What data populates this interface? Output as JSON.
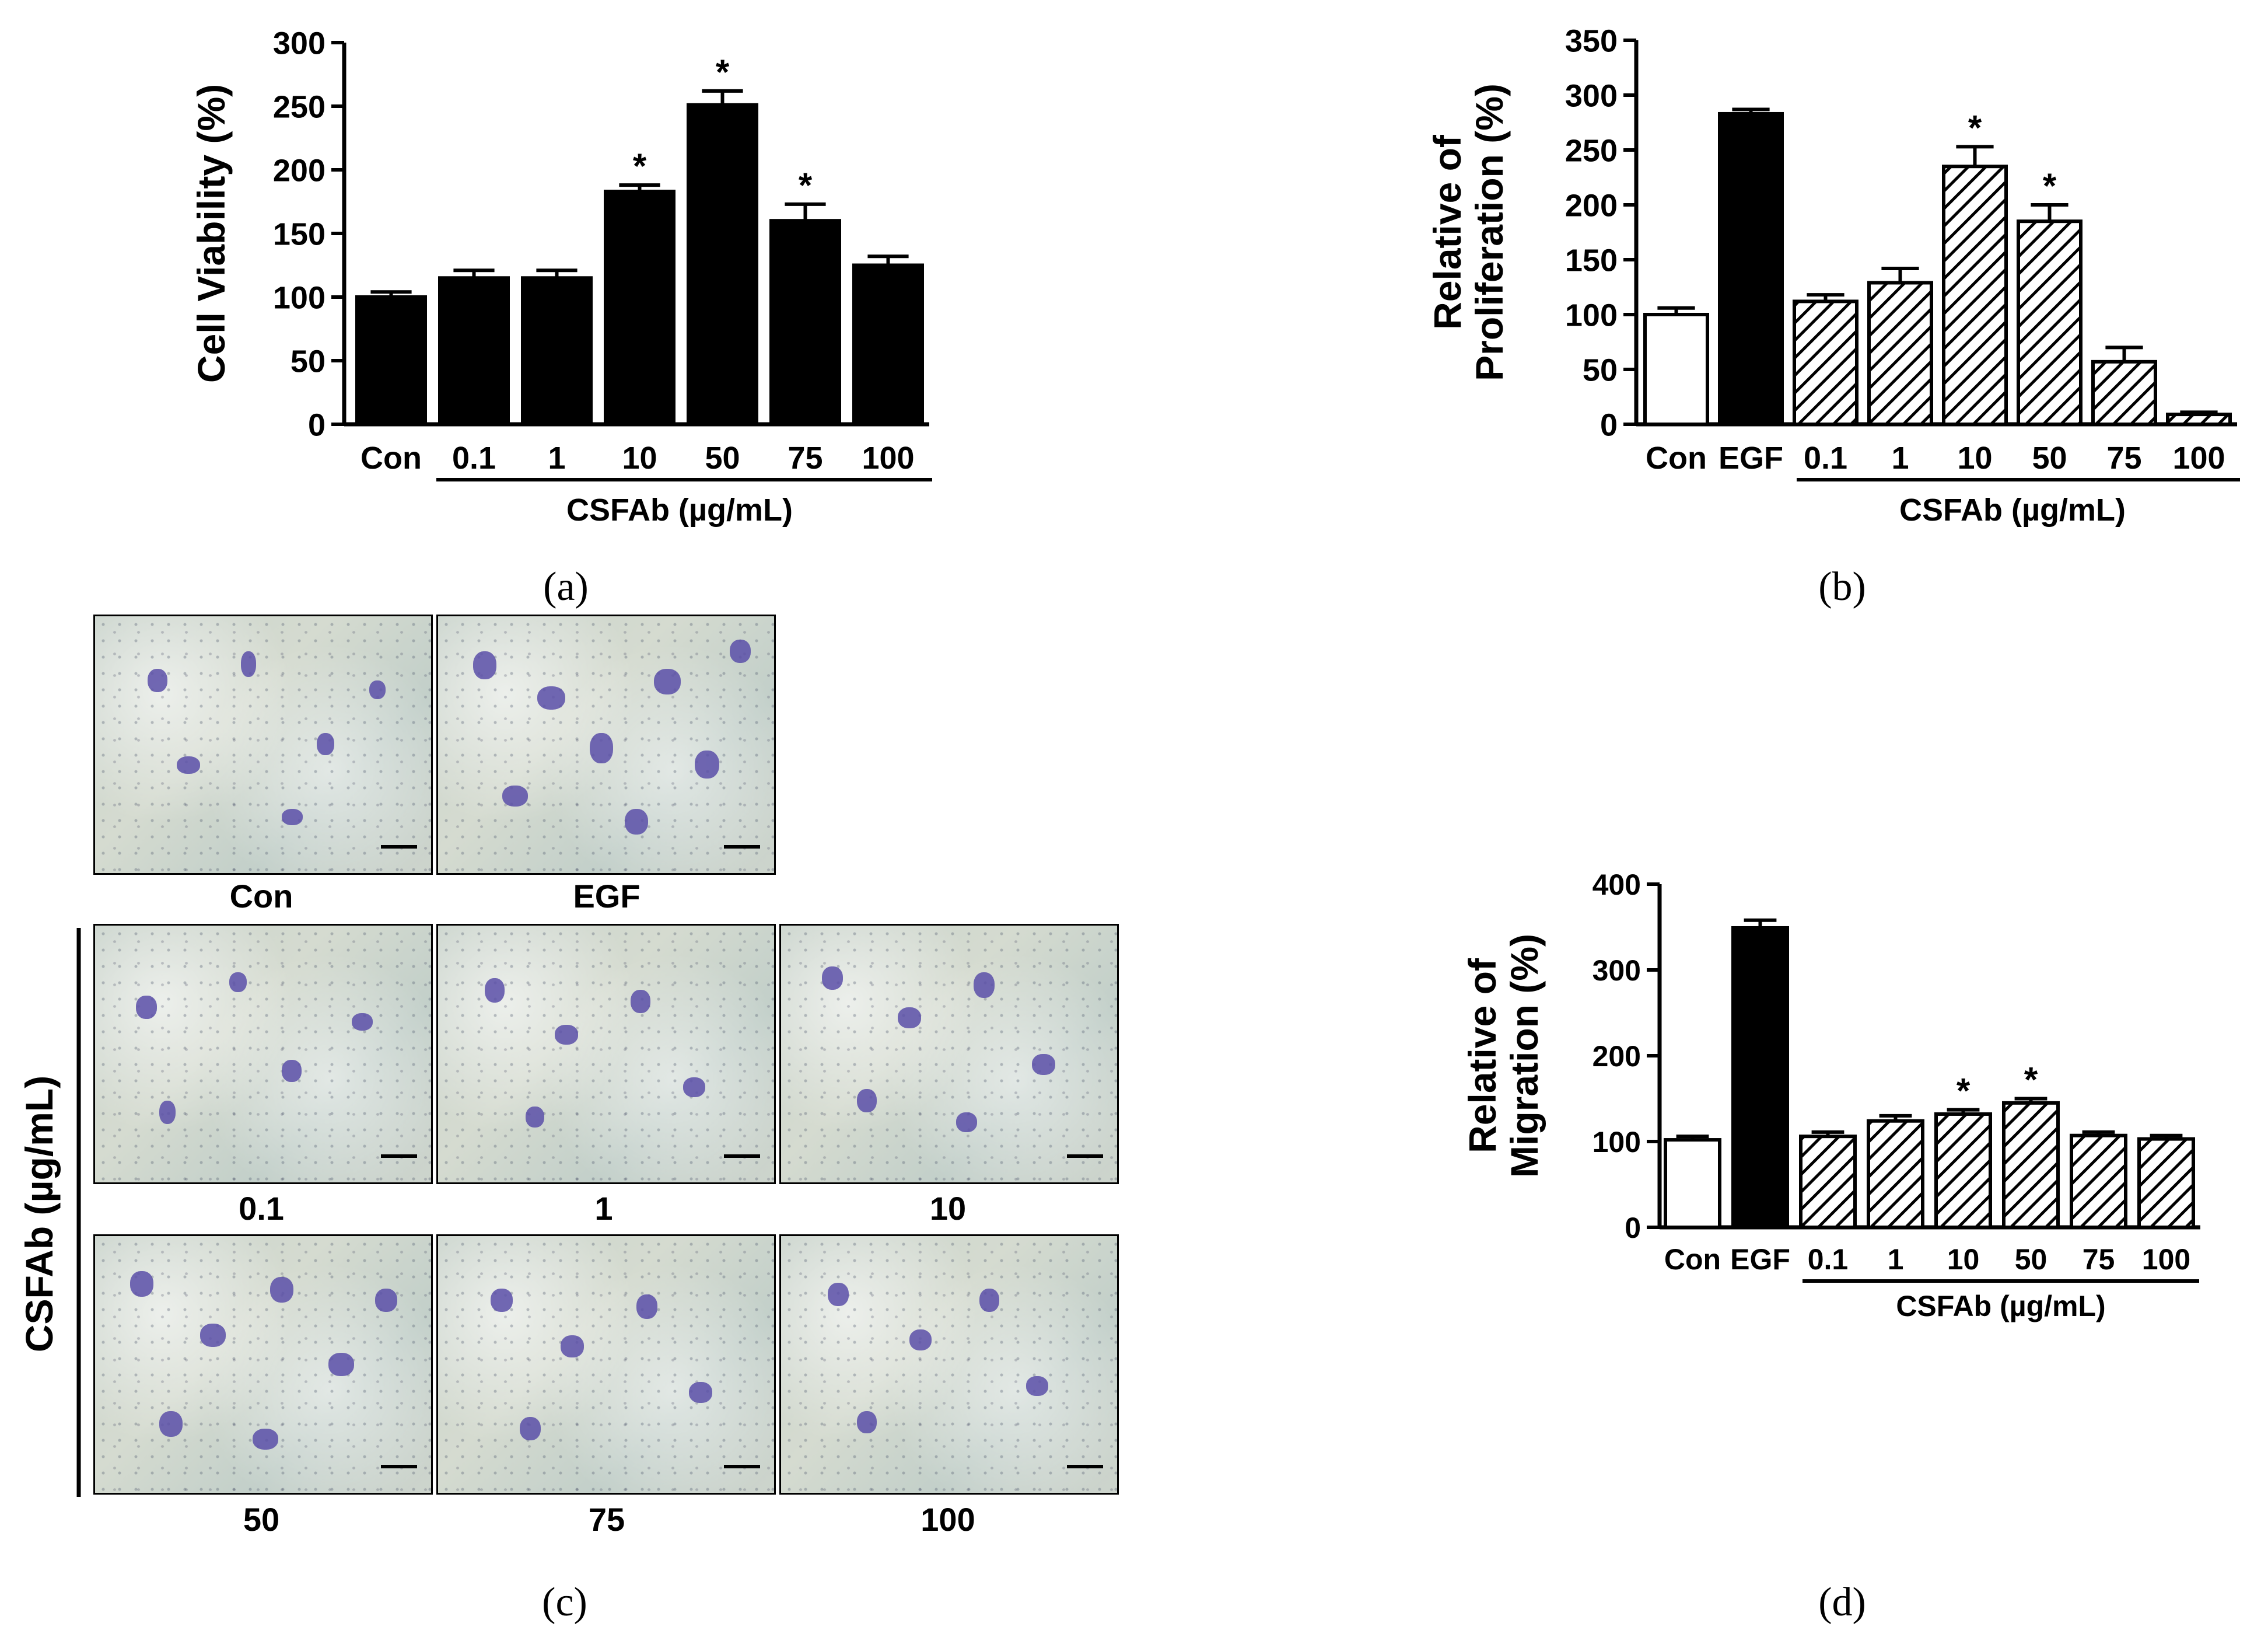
{
  "chart_data": [
    {
      "type": "bar",
      "panel": "(a)",
      "ylabel": "Cell Viability (%)",
      "ylim": [
        0,
        300
      ],
      "yticks": [
        0,
        50,
        100,
        150,
        200,
        250,
        300
      ],
      "categories": [
        "Con",
        "0.1",
        "1",
        "10",
        "50",
        "75",
        "100"
      ],
      "values": [
        100,
        115,
        115,
        183,
        251,
        160,
        125
      ],
      "errors": [
        4,
        6,
        6,
        5,
        11,
        13,
        7
      ],
      "significant": [
        false,
        false,
        false,
        true,
        true,
        true,
        false
      ],
      "fills": [
        "solid",
        "solid",
        "solid",
        "solid",
        "solid",
        "solid",
        "solid"
      ],
      "group_label": "CSFAb  (µg/mL)",
      "sig_marker": "*"
    },
    {
      "type": "bar",
      "panel": "(b)",
      "ylabel": [
        "Relative of",
        "Proliferation (%)"
      ],
      "ylim": [
        0,
        350
      ],
      "yticks": [
        0,
        50,
        100,
        150,
        200,
        250,
        300,
        350
      ],
      "categories": [
        "Con",
        "EGF",
        "0.1",
        "1",
        "10",
        "50",
        "75",
        "100"
      ],
      "values": [
        100,
        283,
        112,
        129,
        235,
        185,
        57,
        9
      ],
      "errors": [
        6,
        4,
        6,
        13,
        18,
        15,
        13,
        2
      ],
      "significant": [
        false,
        false,
        false,
        false,
        true,
        true,
        false,
        false
      ],
      "fills": [
        "open",
        "solid",
        "hatch",
        "hatch",
        "hatch",
        "hatch",
        "hatch",
        "hatch"
      ],
      "group_label": "CSFAb  (µg/mL)",
      "sig_marker": "*"
    },
    {
      "type": "bar",
      "panel": "(d)",
      "ylabel": [
        "Relative of",
        "Migration (%)"
      ],
      "ylim": [
        0,
        400
      ],
      "yticks": [
        0,
        100,
        200,
        300,
        400
      ],
      "categories": [
        "Con",
        "EGF",
        "0.1",
        "1",
        "10",
        "50",
        "75",
        "100"
      ],
      "values": [
        102,
        349,
        106,
        124,
        132,
        145,
        107,
        103
      ],
      "errors": [
        4,
        9,
        5,
        6,
        5,
        5,
        4,
        4
      ],
      "significant": [
        false,
        false,
        false,
        false,
        true,
        true,
        false,
        false
      ],
      "fills": [
        "open",
        "solid",
        "hatch",
        "hatch",
        "hatch",
        "hatch",
        "hatch",
        "hatch"
      ],
      "group_label": "CSFAb  (µg/mL)",
      "sig_marker": "*"
    }
  ],
  "captions": {
    "a": "(a)",
    "b": "(b)",
    "c": "(c)",
    "d": "(d)"
  },
  "panel_c": {
    "group_label": "CSFAb (µg/mL)",
    "images": [
      "Con",
      "EGF",
      "0.1",
      "1",
      "10",
      "50",
      "75",
      "100"
    ]
  }
}
